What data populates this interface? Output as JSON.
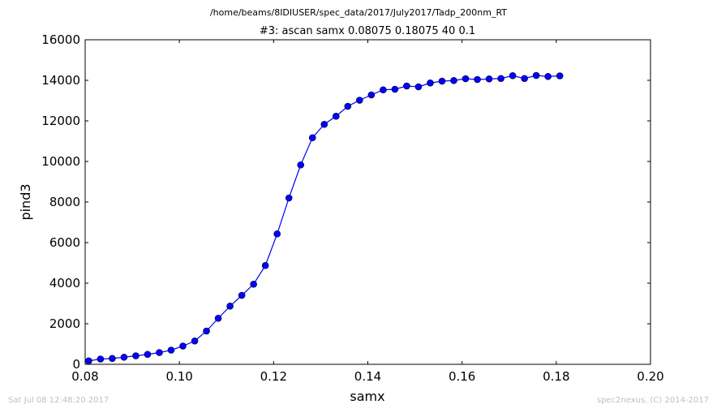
{
  "chart_data": {
    "type": "line",
    "suptitle": "/home/beams/8IDIUSER/spec_data/2017/July2017/Tadp_200nm_RT",
    "title": "#3: ascan  samx 0.08075 0.18075  40 0.1",
    "xlabel": "samx",
    "ylabel": "pind3",
    "xlim": [
      0.08,
      0.2
    ],
    "ylim": [
      0,
      16000
    ],
    "xticks": [
      0.08,
      0.1,
      0.12,
      0.14,
      0.16,
      0.18,
      0.2
    ],
    "xtick_labels": [
      "0.08",
      "0.10",
      "0.12",
      "0.14",
      "0.16",
      "0.18",
      "0.20"
    ],
    "yticks": [
      0,
      2000,
      4000,
      6000,
      8000,
      10000,
      12000,
      14000,
      16000
    ],
    "ytick_labels": [
      "0",
      "2000",
      "4000",
      "6000",
      "8000",
      "10000",
      "12000",
      "14000",
      "16000"
    ],
    "grid": false,
    "color": "#0000ff",
    "marker": "circle",
    "x": [
      0.08075,
      0.08325,
      0.08575,
      0.08825,
      0.09075,
      0.09325,
      0.09575,
      0.09825,
      0.10075,
      0.10325,
      0.10575,
      0.10825,
      0.11075,
      0.11325,
      0.11575,
      0.11825,
      0.12075,
      0.12325,
      0.12575,
      0.12825,
      0.13075,
      0.13325,
      0.13575,
      0.13825,
      0.14075,
      0.14325,
      0.14575,
      0.14825,
      0.15075,
      0.15325,
      0.15575,
      0.15825,
      0.16075,
      0.16325,
      0.16575,
      0.16825,
      0.17075,
      0.17325,
      0.17575,
      0.17825,
      0.18075
    ],
    "y": [
      170,
      260,
      290,
      350,
      420,
      490,
      580,
      700,
      900,
      1150,
      1640,
      2270,
      2870,
      3400,
      3950,
      4870,
      6430,
      8200,
      9830,
      11170,
      11830,
      12230,
      12720,
      13020,
      13280,
      13530,
      13560,
      13720,
      13680,
      13870,
      13960,
      13990,
      14080,
      14040,
      14070,
      14090,
      14230,
      14090,
      14240,
      14190,
      14220
    ]
  },
  "footer": {
    "left": "Sat Jul 08 12:48:20 2017",
    "right": "spec2nexus, (C) 2014-2017"
  }
}
